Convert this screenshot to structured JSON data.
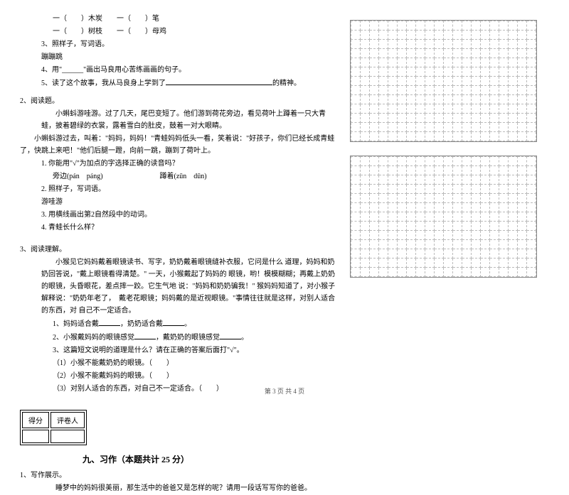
{
  "fill": {
    "l1a": "一（　　）木炭　　一（　　）笔",
    "l1b": "一（　　）树枝　　一（　　）母鸡",
    "l2": "3、照样子，写词语。",
    "l3": "蹦蹦跳",
    "l4": "4、用\"______\"画出马良用心苦练画画的句子。",
    "l5a": "5、读了这个故事，我从马良身上学到了",
    "l5b": "的精神。"
  },
  "q2": {
    "title": "2、阅读题。",
    "p1": "小蝌蚪游哇游。过了几天，尾巴变短了。他们游到荷花旁边，看见荷叶上蹲着一只大青蛙，披着碧绿的衣裳，露着雪白的肚皮，鼓着一对大眼睛。",
    "p2": "小蝌蚪游过去，叫着：\"妈妈，妈妈！\"青蛙妈妈低头一看，笑着说：\"好孩子，你们已经长成青蛙了，快跳上来吧！\"他们后腿一蹬，向前一跳，蹦到了荷叶上。",
    "s1": "1. 你能用\"√\"为加点的字选择正确的读音吗？",
    "s1a": "旁边(pán　páng)　　　　　　　　蹲着(zūn　dūn)",
    "s2": "2. 照样子，写词语。",
    "s2a": "游哇游",
    "s3": "3. 用横线画出第2自然段中的动词。",
    "s4": "4. 青蛙长什么样？"
  },
  "q3": {
    "title": "3、阅读理解。",
    "p1": "小猴见它妈妈戴着眼镜读书、写字，奶奶戴着眼镜缝补衣服，它问是什么 道理，妈妈和奶奶回答说，\"戴上眼镜看得清楚。\" 一天，小猴戴起了妈妈的 眼镜，哟！模模糊糊；再戴上奶奶的眼镜，头昏眼花，差点摔一跤。它生气地 说：\"妈妈和奶奶骗我！\" 猴妈妈知道了，对小猴子解释说：\"奶奶年老了，　戴老花眼镜；妈妈戴的是近视眼镜。\"事情往往就是这样，对别人适合的东西，对 自己不一定适合。",
    "s1a": "1、妈妈适合戴",
    "s1b": "，奶奶适合戴",
    "s1c": "。",
    "s2a": "2、小猴戴妈妈的眼镜感觉",
    "s2b": "，戴奶奶的眼镜感觉",
    "s2c": "。",
    "s3": "3、这篇短文说明的道理是什么？请在正确的答案后面打\"√\"。",
    "o1": "（1）小猴不能戴奶奶的眼镜。（　　）",
    "o2": "（2）小猴不能戴妈妈的眼镜。（　　）",
    "o3": "（3）对别人适合的东西，对自己不一定适合。（　　）"
  },
  "score": {
    "c1": "得分",
    "c2": "评卷人"
  },
  "section9": "九、习作（本题共计 25 分）",
  "writing": {
    "title": "1、写作展示。",
    "body": "睡梦中的妈妈很美丽，那生活中的爸爸又是怎样的呢？请用一段话写写你的爸爸。"
  },
  "footer": "第 3 页 共 4 页",
  "grid": {
    "rows": 13,
    "cols": 20
  }
}
